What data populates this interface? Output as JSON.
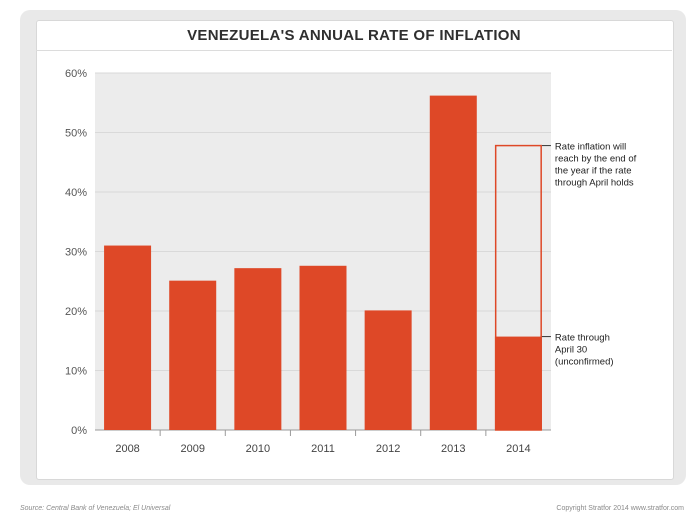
{
  "chart_data": {
    "type": "bar",
    "title": "VENEZUELA'S ANNUAL RATE OF INFLATION",
    "categories": [
      "2008",
      "2009",
      "2010",
      "2011",
      "2012",
      "2013",
      "2014"
    ],
    "values": [
      31.0,
      25.1,
      27.2,
      27.6,
      20.1,
      56.2,
      15.7
    ],
    "projected_2014": 47.8,
    "yticks": [
      "0%",
      "10%",
      "20%",
      "30%",
      "40%",
      "50%",
      "60%"
    ],
    "ylim": [
      0,
      60
    ],
    "grid": true,
    "annotations": [
      {
        "name": "projected",
        "lines": [
          "Rate inflation will",
          "reach by the end of",
          "the year if the rate",
          "through April holds"
        ]
      },
      {
        "name": "through-april",
        "lines": [
          "Rate through",
          "April 30",
          "(unconfirmed)"
        ]
      }
    ]
  },
  "colors": {
    "bar": "#de4827",
    "outline": "#de4827",
    "grid": "#d9d9d9",
    "plot_bg": "#ececec"
  },
  "footer": {
    "source": "Source: Central Bank of Venezuela; El Universal",
    "copyright": "Copyright Stratfor 2014   www.stratfor.com"
  }
}
